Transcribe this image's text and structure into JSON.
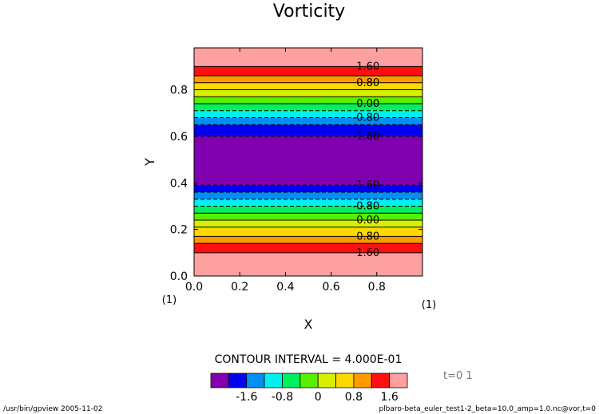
{
  "chart_data": {
    "type": "heatmap",
    "title": "Vorticity",
    "xlabel": "X",
    "ylabel": "Y",
    "xlim": [
      0,
      1
    ],
    "ylim": [
      0,
      0.98
    ],
    "x_ticks": [
      "0.0",
      "0.2",
      "0.4",
      "0.6",
      "0.8"
    ],
    "x_tick_values": [
      0,
      0.2,
      0.4,
      0.6,
      0.8
    ],
    "y_ticks": [
      "0.0",
      "0.2",
      "0.4",
      "0.6",
      "0.8"
    ],
    "y_tick_values": [
      0,
      0.2,
      0.4,
      0.6,
      0.8
    ],
    "axis_index_left": "(1)",
    "axis_index_right": "(1)",
    "bands": [
      {
        "y0": 0.0,
        "y1": 0.1,
        "color": "#ffa0a0"
      },
      {
        "y0": 0.1,
        "y1": 0.14,
        "color": "#ff1010"
      },
      {
        "y0": 0.14,
        "y1": 0.17,
        "color": "#ff9a00"
      },
      {
        "y0": 0.17,
        "y1": 0.21,
        "color": "#ffd800"
      },
      {
        "y0": 0.21,
        "y1": 0.24,
        "color": "#d8f000"
      },
      {
        "y0": 0.24,
        "y1": 0.27,
        "color": "#58f000"
      },
      {
        "y0": 0.27,
        "y1": 0.3,
        "color": "#00f060"
      },
      {
        "y0": 0.3,
        "y1": 0.33,
        "color": "#00f0f0"
      },
      {
        "y0": 0.33,
        "y1": 0.36,
        "color": "#0090f0"
      },
      {
        "y0": 0.36,
        "y1": 0.39,
        "color": "#0000f0"
      },
      {
        "y0": 0.39,
        "y1": 0.6,
        "color": "#8000b0"
      },
      {
        "y0": 0.6,
        "y1": 0.65,
        "color": "#0000f0"
      },
      {
        "y0": 0.65,
        "y1": 0.68,
        "color": "#0090f0"
      },
      {
        "y0": 0.68,
        "y1": 0.71,
        "color": "#00f0f0"
      },
      {
        "y0": 0.71,
        "y1": 0.74,
        "color": "#00f060"
      },
      {
        "y0": 0.74,
        "y1": 0.77,
        "color": "#58f000"
      },
      {
        "y0": 0.77,
        "y1": 0.8,
        "color": "#d8f000"
      },
      {
        "y0": 0.8,
        "y1": 0.83,
        "color": "#ffd800"
      },
      {
        "y0": 0.83,
        "y1": 0.86,
        "color": "#ff9a00"
      },
      {
        "y0": 0.86,
        "y1": 0.9,
        "color": "#ff1010"
      },
      {
        "y0": 0.9,
        "y1": 0.98,
        "color": "#ffa0a0"
      }
    ],
    "contour_lines": [
      {
        "y": 0.1,
        "dashed": false
      },
      {
        "y": 0.14,
        "dashed": false
      },
      {
        "y": 0.17,
        "dashed": false
      },
      {
        "y": 0.21,
        "dashed": false
      },
      {
        "y": 0.24,
        "dashed": false
      },
      {
        "y": 0.27,
        "dashed": false
      },
      {
        "y": 0.3,
        "dashed": true
      },
      {
        "y": 0.33,
        "dashed": true
      },
      {
        "y": 0.36,
        "dashed": true
      },
      {
        "y": 0.39,
        "dashed": true
      },
      {
        "y": 0.6,
        "dashed": true
      },
      {
        "y": 0.65,
        "dashed": true
      },
      {
        "y": 0.68,
        "dashed": true
      },
      {
        "y": 0.71,
        "dashed": true
      },
      {
        "y": 0.74,
        "dashed": false
      },
      {
        "y": 0.77,
        "dashed": false
      },
      {
        "y": 0.8,
        "dashed": false
      },
      {
        "y": 0.83,
        "dashed": false
      },
      {
        "y": 0.86,
        "dashed": false
      },
      {
        "y": 0.9,
        "dashed": false
      }
    ],
    "contour_labels": [
      {
        "text": "1.60",
        "x": 0.7,
        "y": 0.9
      },
      {
        "text": "0.80",
        "x": 0.7,
        "y": 0.83
      },
      {
        "text": "0.00",
        "x": 0.7,
        "y": 0.74
      },
      {
        "text": "-0.80",
        "x": 0.7,
        "y": 0.68
      },
      {
        "text": "-1.60",
        "x": 0.7,
        "y": 0.6
      },
      {
        "text": "-1.60",
        "x": 0.7,
        "y": 0.39
      },
      {
        "text": "-0.80",
        "x": 0.7,
        "y": 0.3
      },
      {
        "text": "0.00",
        "x": 0.7,
        "y": 0.24
      },
      {
        "text": "0.80",
        "x": 0.7,
        "y": 0.17
      },
      {
        "text": "1.60",
        "x": 0.7,
        "y": 0.1
      }
    ],
    "contour_interval_text": "CONTOUR INTERVAL = 4.000E-01",
    "colorbar": {
      "colors": [
        "#8000b0",
        "#0000f0",
        "#0090f0",
        "#00f0f0",
        "#00f060",
        "#58f000",
        "#d8f000",
        "#ffd800",
        "#ff9a00",
        "#ff1010",
        "#ffa0a0"
      ],
      "labels": [
        "-1.6",
        "-0.8",
        "0",
        "0.8",
        "1.6"
      ],
      "label_boundaries": [
        1,
        3,
        5,
        7,
        9
      ]
    },
    "time_label": "t=0 1"
  },
  "footer": {
    "left": "/usr/bin/gpview  2005-11-02",
    "right": "plbaro-beta_euler_test1-2_beta=10.0_amp=1.0.nc@vor,t=0"
  }
}
